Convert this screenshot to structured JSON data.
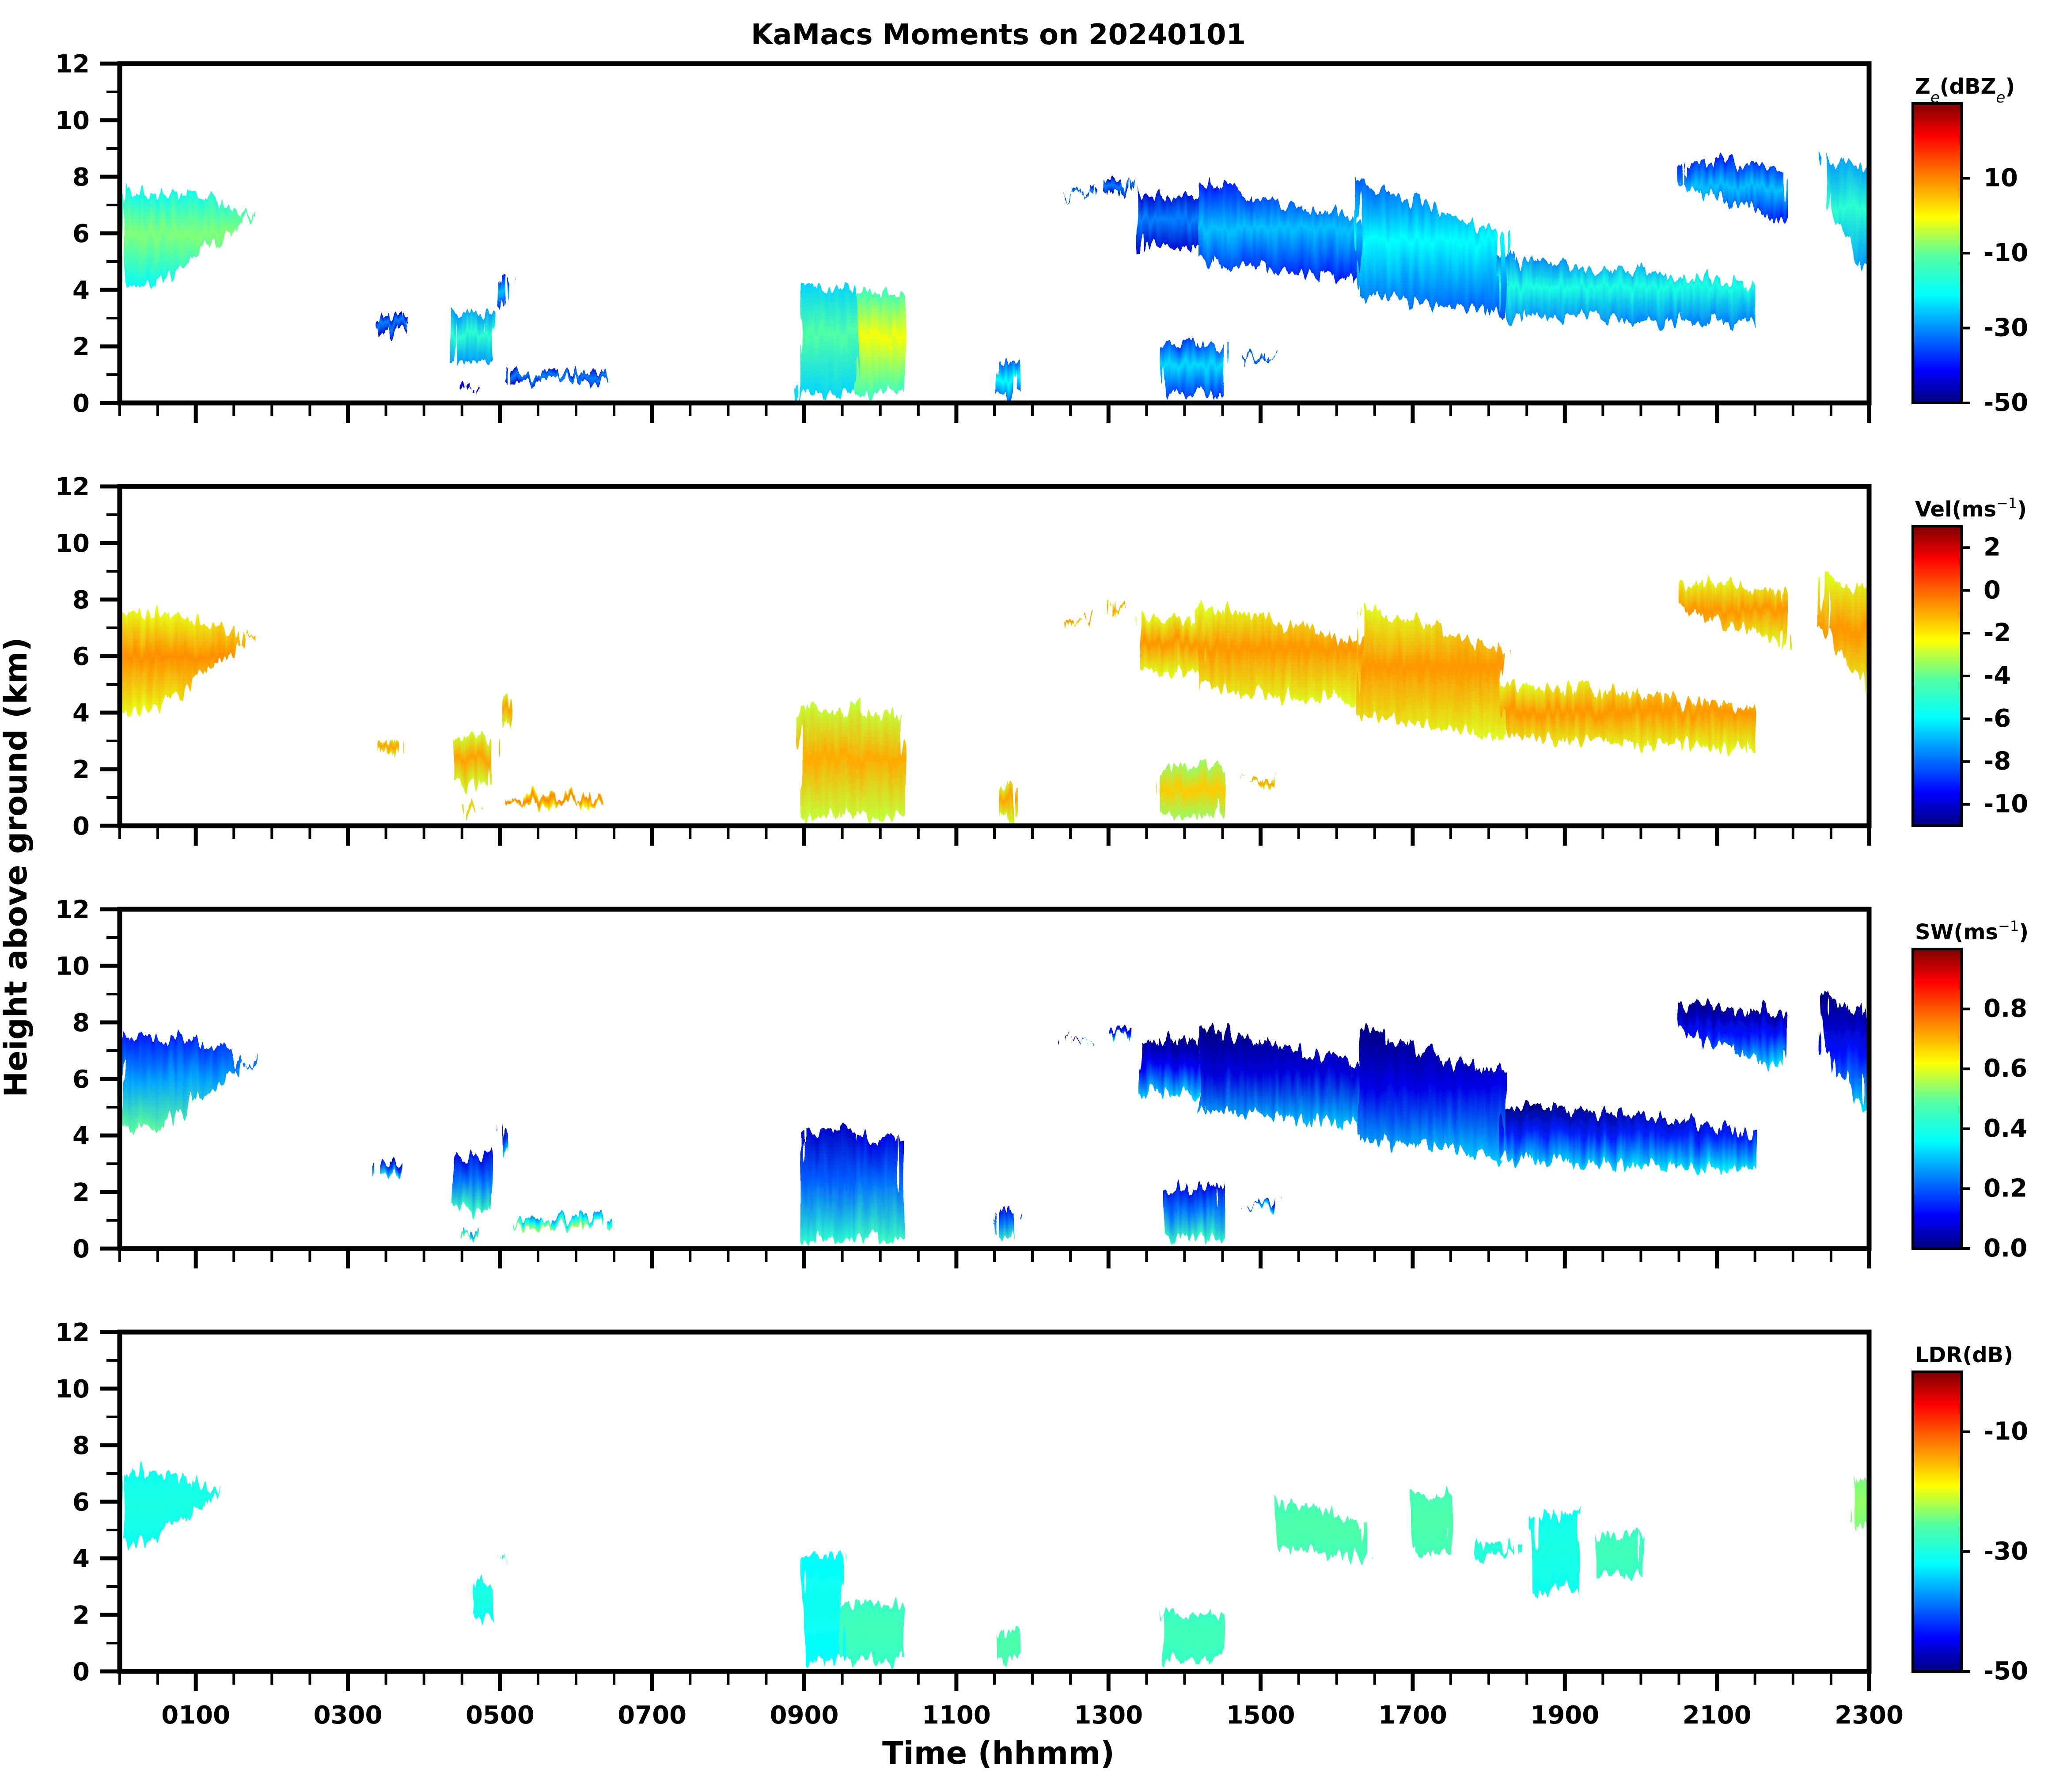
{
  "chart_data": {
    "type": "heatmap",
    "title": "KaMacs Moments on 20240101",
    "xlabel": "Time (hhmm)",
    "ylabel": "Height above ground (km)",
    "xlim": [
      0,
      23
    ],
    "ylim": [
      0,
      12
    ],
    "x_ticks": [
      1,
      3,
      5,
      7,
      9,
      11,
      13,
      15,
      17,
      19,
      21,
      23
    ],
    "x_tick_labels": [
      "0100",
      "0300",
      "0500",
      "0700",
      "0900",
      "1100",
      "1300",
      "1500",
      "1700",
      "1900",
      "2100",
      "2300"
    ],
    "y_ticks": [
      0,
      2,
      4,
      6,
      8,
      10,
      12
    ],
    "y_tick_labels": [
      "0",
      "2",
      "4",
      "6",
      "8",
      "10",
      "12"
    ],
    "colormap": [
      "#00007f",
      "#0000ff",
      "#007fff",
      "#00ffff",
      "#7fff7f",
      "#ffff00",
      "#ff7f00",
      "#ff0000",
      "#7f0000"
    ],
    "panels": [
      {
        "name": "reflectivity",
        "colorbar_label": "Ze(dBZe)",
        "colorbar_label_main": "Z",
        "colorbar_label_sub": "e",
        "colorbar_label_rest": "(dBZ",
        "colorbar_label_sub2": "e",
        "colorbar_label_end": ")",
        "vmin": -50,
        "vmax": 30,
        "cbar_ticks": [
          -50,
          -30,
          -10,
          10
        ],
        "cbar_tick_labels": [
          "-50",
          "-30",
          "-10",
          "10"
        ],
        "echoes": [
          {
            "t0": 0.0,
            "t1": 1.8,
            "base": 4.0,
            "top": 7.6,
            "value": -12,
            "shape": "wedge"
          },
          {
            "t0": 3.4,
            "t1": 3.7,
            "base": 2.4,
            "top": 3.2,
            "value": -35
          },
          {
            "t0": 4.4,
            "t1": 4.9,
            "base": 1.3,
            "top": 3.4,
            "value": -20
          },
          {
            "t0": 5.0,
            "t1": 5.1,
            "base": 3.3,
            "top": 4.5,
            "value": -30
          },
          {
            "t0": 4.5,
            "t1": 4.7,
            "base": 0.3,
            "top": 0.8,
            "value": -45
          },
          {
            "t0": 5.1,
            "t1": 6.4,
            "base": 0.6,
            "top": 1.2,
            "value": -35
          },
          {
            "t0": 8.95,
            "t1": 9.7,
            "base": 0.2,
            "top": 4.3,
            "value": -15
          },
          {
            "t0": 9.7,
            "t1": 10.3,
            "base": 0.2,
            "top": 4.1,
            "value": -5
          },
          {
            "t0": 11.55,
            "t1": 11.8,
            "base": 0.2,
            "top": 1.6,
            "value": -25
          },
          {
            "t0": 13.7,
            "t1": 14.5,
            "base": 0.2,
            "top": 2.3,
            "value": -28
          },
          {
            "t0": 14.8,
            "t1": 15.2,
            "base": 1.5,
            "top": 1.7,
            "value": -35
          },
          {
            "t0": 12.4,
            "t1": 12.8,
            "base": 7.2,
            "top": 7.5,
            "value": -35
          },
          {
            "t0": 13.0,
            "t1": 13.3,
            "base": 7.4,
            "top": 8.0,
            "value": -35
          },
          {
            "t0": 13.4,
            "t1": 14.2,
            "base": 5.3,
            "top": 7.5,
            "value": -35
          },
          {
            "t0": 14.2,
            "t1": 16.3,
            "base": 4.2,
            "top": 8.0,
            "value": -30,
            "shape": "slant"
          },
          {
            "t0": 16.3,
            "t1": 18.2,
            "base": 3.0,
            "top": 8.0,
            "value": -25,
            "shape": "slant"
          },
          {
            "t0": 18.2,
            "t1": 21.5,
            "base": 2.6,
            "top": 5.3,
            "value": -22,
            "shape": "slant"
          },
          {
            "t0": 20.5,
            "t1": 21.9,
            "base": 6.2,
            "top": 8.8,
            "value": -30,
            "shape": "slantdown"
          },
          {
            "t0": 22.4,
            "t1": 23.0,
            "base": 4.5,
            "top": 8.9,
            "value": -20,
            "shape": "slantdown"
          }
        ]
      },
      {
        "name": "velocity",
        "colorbar_label": "Vel(ms-1)",
        "colorbar_label_main": "Vel(ms",
        "colorbar_label_sup": "−1",
        "colorbar_label_end": ")",
        "vmin": -11,
        "vmax": 3,
        "cbar_ticks": [
          -10,
          -8,
          -6,
          -4,
          -2,
          0,
          2
        ],
        "cbar_tick_labels": [
          "-10",
          "-8",
          "-6",
          "-4",
          "-2",
          "0",
          "2"
        ],
        "echoes": [
          {
            "t0": 0.0,
            "t1": 1.8,
            "base": 4.0,
            "top": 7.6,
            "value": -0.9,
            "shape": "wedge"
          },
          {
            "t0": 3.4,
            "t1": 3.7,
            "base": 2.4,
            "top": 3.2,
            "value": -1.2
          },
          {
            "t0": 4.4,
            "t1": 4.9,
            "base": 1.3,
            "top": 3.4,
            "value": -1.2
          },
          {
            "t0": 5.0,
            "t1": 5.1,
            "base": 3.3,
            "top": 4.5,
            "value": -1.2
          },
          {
            "t0": 4.5,
            "t1": 4.7,
            "base": 0.3,
            "top": 0.8,
            "value": -1.8
          },
          {
            "t0": 5.1,
            "t1": 6.4,
            "base": 0.6,
            "top": 1.2,
            "value": -0.8
          },
          {
            "t0": 8.95,
            "t1": 9.7,
            "base": 0.2,
            "top": 4.3,
            "value": -1.3
          },
          {
            "t0": 9.7,
            "t1": 10.3,
            "base": 0.2,
            "top": 4.1,
            "value": -1.3
          },
          {
            "t0": 11.55,
            "t1": 11.8,
            "base": 0.2,
            "top": 1.6,
            "value": -1.2
          },
          {
            "t0": 13.7,
            "t1": 14.5,
            "base": 0.2,
            "top": 2.3,
            "value": -1.8
          },
          {
            "t0": 14.8,
            "t1": 15.2,
            "base": 1.5,
            "top": 1.7,
            "value": -1.2
          },
          {
            "t0": 12.4,
            "t1": 12.8,
            "base": 7.2,
            "top": 7.5,
            "value": -1.0
          },
          {
            "t0": 13.0,
            "t1": 13.3,
            "base": 7.4,
            "top": 8.0,
            "value": -1.0
          },
          {
            "t0": 13.4,
            "t1": 14.2,
            "base": 5.3,
            "top": 7.5,
            "value": -1.0
          },
          {
            "t0": 14.2,
            "t1": 16.3,
            "base": 4.2,
            "top": 8.0,
            "value": -1.0,
            "shape": "slant"
          },
          {
            "t0": 16.3,
            "t1": 18.2,
            "base": 3.0,
            "top": 8.0,
            "value": -1.0,
            "shape": "slant"
          },
          {
            "t0": 18.2,
            "t1": 21.5,
            "base": 2.6,
            "top": 5.3,
            "value": -1.0,
            "shape": "slant"
          },
          {
            "t0": 20.5,
            "t1": 21.9,
            "base": 6.2,
            "top": 8.8,
            "value": -1.0,
            "shape": "slantdown"
          },
          {
            "t0": 22.4,
            "t1": 23.0,
            "base": 4.5,
            "top": 8.9,
            "value": -1.0,
            "shape": "slantdown"
          }
        ]
      },
      {
        "name": "spectrum_width",
        "colorbar_label": "SW(ms-1)",
        "colorbar_label_main": "SW(ms",
        "colorbar_label_sup": "−1",
        "colorbar_label_end": ")",
        "vmin": 0.0,
        "vmax": 1.0,
        "cbar_ticks": [
          0.0,
          0.2,
          0.4,
          0.6,
          0.8
        ],
        "cbar_tick_labels": [
          "0.0",
          "0.2",
          "0.4",
          "0.6",
          "0.8"
        ],
        "echoes": [
          {
            "t0": 0.0,
            "t1": 1.8,
            "base": 4.0,
            "top": 7.6,
            "value": 0.25,
            "shape": "wedge"
          },
          {
            "t0": 3.4,
            "t1": 3.7,
            "base": 2.4,
            "top": 3.2,
            "value": 0.15
          },
          {
            "t0": 4.4,
            "t1": 4.9,
            "base": 1.3,
            "top": 3.4,
            "value": 0.2
          },
          {
            "t0": 5.0,
            "t1": 5.1,
            "base": 3.3,
            "top": 4.5,
            "value": 0.15
          },
          {
            "t0": 4.5,
            "t1": 4.7,
            "base": 0.3,
            "top": 0.8,
            "value": 0.3
          },
          {
            "t0": 5.1,
            "t1": 6.4,
            "base": 0.6,
            "top": 1.2,
            "value": 0.35
          },
          {
            "t0": 8.95,
            "t1": 9.7,
            "base": 0.2,
            "top": 4.3,
            "value": 0.18
          },
          {
            "t0": 9.7,
            "t1": 10.3,
            "base": 0.2,
            "top": 4.1,
            "value": 0.2
          },
          {
            "t0": 11.55,
            "t1": 11.8,
            "base": 0.2,
            "top": 1.6,
            "value": 0.2
          },
          {
            "t0": 13.7,
            "t1": 14.5,
            "base": 0.2,
            "top": 2.3,
            "value": 0.2
          },
          {
            "t0": 14.8,
            "t1": 15.2,
            "base": 1.5,
            "top": 1.7,
            "value": 0.15
          },
          {
            "t0": 12.4,
            "t1": 12.8,
            "base": 7.2,
            "top": 7.5,
            "value": 0.1
          },
          {
            "t0": 13.0,
            "t1": 13.3,
            "base": 7.4,
            "top": 8.0,
            "value": 0.1
          },
          {
            "t0": 13.4,
            "t1": 14.2,
            "base": 5.3,
            "top": 7.5,
            "value": 0.08
          },
          {
            "t0": 14.2,
            "t1": 16.3,
            "base": 4.2,
            "top": 8.0,
            "value": 0.06,
            "shape": "slant"
          },
          {
            "t0": 16.3,
            "t1": 18.2,
            "base": 3.0,
            "top": 8.0,
            "value": 0.07,
            "shape": "slant"
          },
          {
            "t0": 18.2,
            "t1": 21.5,
            "base": 2.6,
            "top": 5.3,
            "value": 0.12,
            "shape": "slant"
          },
          {
            "t0": 20.5,
            "t1": 21.9,
            "base": 6.2,
            "top": 8.8,
            "value": 0.1,
            "shape": "slantdown"
          },
          {
            "t0": 22.4,
            "t1": 23.0,
            "base": 4.5,
            "top": 8.9,
            "value": 0.1,
            "shape": "slantdown"
          }
        ]
      },
      {
        "name": "ldr",
        "colorbar_label": "LDR(dB)",
        "vmin": -50,
        "vmax": 0,
        "cbar_ticks": [
          -50,
          -30,
          -10
        ],
        "cbar_tick_labels": [
          "-50",
          "-30",
          "-10"
        ],
        "echoes": [
          {
            "t0": 0.0,
            "t1": 1.35,
            "base": 4.3,
            "top": 7.2,
            "value": -31,
            "shape": "wedge"
          },
          {
            "t0": 4.6,
            "t1": 4.9,
            "base": 1.8,
            "top": 3.3,
            "value": -31
          },
          {
            "t0": 5.0,
            "t1": 5.1,
            "base": 3.8,
            "top": 4.2,
            "value": -30
          },
          {
            "t0": 9.0,
            "t1": 9.5,
            "base": 0.2,
            "top": 4.3,
            "value": -32
          },
          {
            "t0": 9.5,
            "t1": 10.3,
            "base": 0.2,
            "top": 2.6,
            "value": -28
          },
          {
            "t0": 11.55,
            "t1": 11.8,
            "base": 0.2,
            "top": 1.6,
            "value": -27
          },
          {
            "t0": 13.7,
            "t1": 14.5,
            "base": 0.2,
            "top": 2.2,
            "value": -28
          },
          {
            "t0": 15.2,
            "t1": 16.4,
            "base": 3.9,
            "top": 6.3,
            "value": -27,
            "shape": "slant"
          },
          {
            "t0": 17.0,
            "t1": 17.5,
            "base": 4.0,
            "top": 6.5,
            "value": -27
          },
          {
            "t0": 17.8,
            "t1": 18.4,
            "base": 3.9,
            "top": 4.6,
            "value": -30
          },
          {
            "t0": 18.6,
            "t1": 19.2,
            "base": 2.7,
            "top": 5.8,
            "value": -31
          },
          {
            "t0": 19.4,
            "t1": 20.0,
            "base": 3.3,
            "top": 5.0,
            "value": -28
          },
          {
            "t0": 22.8,
            "t1": 23.0,
            "base": 5.0,
            "top": 7.0,
            "value": -24
          }
        ]
      }
    ]
  }
}
